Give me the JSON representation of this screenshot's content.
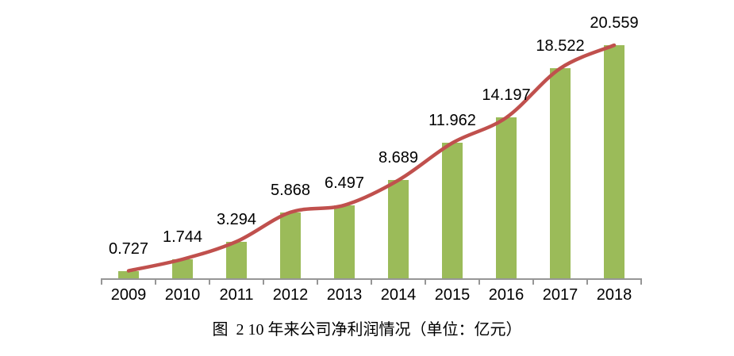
{
  "page": {
    "background": "#FFFFFF"
  },
  "caption": {
    "text": "图  2 10 年来公司净利润情况（单位：亿元）"
  },
  "chart_data": {
    "type": "bar",
    "combo": "bar+line",
    "title": "图 2 10 年来公司净利润情况（单位：亿元）",
    "unit": "亿元",
    "categories": [
      "2009",
      "2010",
      "2011",
      "2012",
      "2013",
      "2014",
      "2015",
      "2016",
      "2017",
      "2018"
    ],
    "series": [
      {
        "name": "bar",
        "type": "bar",
        "color": "#9BBB59",
        "values": [
          0.727,
          1.744,
          3.294,
          5.868,
          6.497,
          8.689,
          11.962,
          14.197,
          18.522,
          20.559
        ]
      },
      {
        "name": "line",
        "type": "line",
        "color": "#C0504D",
        "smooth": true,
        "values": [
          0.727,
          1.744,
          3.294,
          5.868,
          6.497,
          8.689,
          11.962,
          14.197,
          18.522,
          20.559
        ]
      }
    ],
    "data_labels": [
      "0.727",
      "1.744",
      "3.294",
      "5.868",
      "6.497",
      "8.689",
      "11.962",
      "14.197",
      "18.522",
      "20.559"
    ],
    "xlabel": "",
    "ylabel": "",
    "ylim": [
      0,
      25
    ],
    "grid": false,
    "legend": "none",
    "y_axis_visible": false,
    "axis_color": "#969696",
    "text_color": "#000000"
  }
}
